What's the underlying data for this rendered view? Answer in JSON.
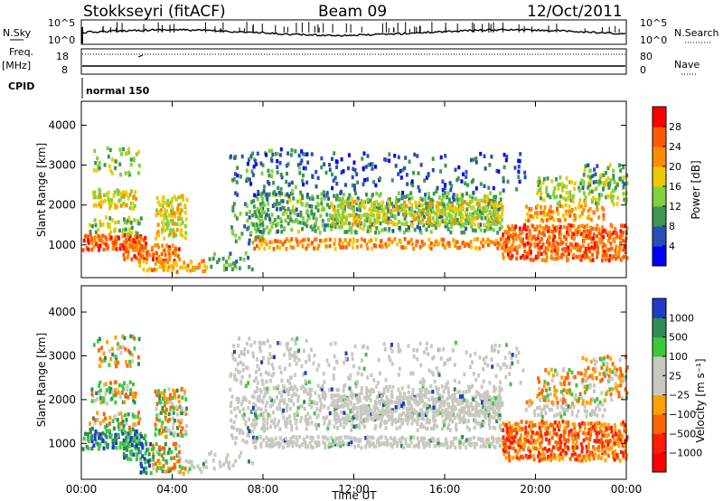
{
  "header": {
    "radar": "Stokkseyri (fitACF)",
    "beam": "Beam 09",
    "date": "12/Oct/2011"
  },
  "status": {
    "nsky_label": "N.Sky",
    "nsky_ticks": [
      "10^5",
      "10^0"
    ],
    "nsearch_label": "N.Search",
    "nsearch_ticks": [
      "10^5",
      "10^0"
    ],
    "freq_label": "Freq.",
    "freq_unit": "[MHz]",
    "freq_ticks": [
      "18",
      "8"
    ],
    "nave_label": "Nave",
    "nave_ticks": [
      "80",
      "0"
    ],
    "cpid_label": "CPID",
    "cpid_value": "normal 150"
  },
  "chart_data": [
    {
      "type": "heatmap",
      "name": "power",
      "ylabel": "Slant Range [km]",
      "xlabel": "Time UT",
      "xlim": [
        0,
        24
      ],
      "ylim": [
        180,
        4600
      ],
      "y_ticks": [
        "1000",
        "2000",
        "3000",
        "4000"
      ],
      "x_ticks": [
        "00:00",
        "04:00",
        "08:00",
        "12:00",
        "16:00",
        "20:00",
        "00:00"
      ],
      "colorbar_label": "Power [dB]",
      "colorbar_ticks": [
        "4",
        "8",
        "12",
        "16",
        "20",
        "24",
        "28"
      ],
      "colorbar_colors": [
        "#0000ff",
        "#2850b4",
        "#3c9650",
        "#7fd23c",
        "#f0c800",
        "#ff8c00",
        "#ff5a00",
        "#ff0000"
      ]
    },
    {
      "type": "heatmap",
      "name": "velocity",
      "ylabel": "Slant Range [km]",
      "xlabel": "Time UT",
      "xlim": [
        0,
        24
      ],
      "ylim": [
        180,
        4600
      ],
      "y_ticks": [
        "1000",
        "2000",
        "3000",
        "4000"
      ],
      "x_ticks": [
        "00:00",
        "04:00",
        "08:00",
        "12:00",
        "16:00",
        "20:00",
        "00:00"
      ],
      "colorbar_label": "Velocity [m s⁻¹]",
      "colorbar_ticks": [
        "1000",
        "500",
        "100",
        "25",
        "−25",
        "−100",
        "−500",
        "−1000"
      ],
      "colorbar_colors": [
        "#1e3cc8",
        "#2f8c55",
        "#3cc83c",
        "#c8c8c0",
        "#c8c8c0",
        "#ffa000",
        "#ff6400",
        "#ff1e00",
        "#ff0000"
      ]
    }
  ],
  "features": [
    {
      "t0": 0.0,
      "t1": 2.8,
      "r0": 860,
      "r1": 1260,
      "c": 0.85,
      "d": 0.95
    },
    {
      "t0": 0.3,
      "t1": 2.6,
      "r0": 1260,
      "r1": 1700,
      "c": 0.45,
      "d": 0.55
    },
    {
      "t0": 0.4,
      "t1": 2.4,
      "r0": 1900,
      "r1": 2400,
      "c": 0.55,
      "d": 0.75
    },
    {
      "t0": 0.5,
      "t1": 2.5,
      "r0": 2700,
      "r1": 3450,
      "c": 0.4,
      "d": 0.35
    },
    {
      "t0": 1.8,
      "t1": 4.3,
      "r0": 600,
      "r1": 1000,
      "c": 0.78,
      "d": 0.85
    },
    {
      "t0": 2.5,
      "t1": 5.5,
      "r0": 300,
      "r1": 600,
      "c": 0.65,
      "d": 0.7
    },
    {
      "t0": 3.2,
      "t1": 4.6,
      "r0": 1150,
      "r1": 2250,
      "c": 0.55,
      "d": 0.65
    },
    {
      "t0": 5.5,
      "t1": 7.5,
      "r0": 350,
      "r1": 800,
      "c": 0.3,
      "d": 0.35
    },
    {
      "t0": 6.5,
      "t1": 8.0,
      "r0": 1000,
      "r1": 2100,
      "c": 0.3,
      "d": 0.35
    },
    {
      "t0": 7.5,
      "t1": 19.0,
      "r0": 900,
      "r1": 1150,
      "c": 0.72,
      "d": 0.92
    },
    {
      "t0": 7.5,
      "t1": 18.5,
      "r0": 1300,
      "r1": 2300,
      "c": 0.35,
      "d": 0.6
    },
    {
      "t0": 11.0,
      "t1": 18.5,
      "r0": 1500,
      "r1": 2100,
      "c": 0.52,
      "d": 0.7
    },
    {
      "t0": 6.5,
      "t1": 10.0,
      "r0": 2200,
      "r1": 3400,
      "c": 0.2,
      "d": 0.3
    },
    {
      "t0": 10.0,
      "t1": 19.5,
      "r0": 2300,
      "r1": 3300,
      "c": 0.15,
      "d": 0.18
    },
    {
      "t0": 18.5,
      "t1": 24.0,
      "r0": 600,
      "r1": 1500,
      "c": 0.82,
      "d": 0.85
    },
    {
      "t0": 19.5,
      "t1": 23.0,
      "r0": 1600,
      "r1": 2000,
      "c": 0.7,
      "d": 0.7
    },
    {
      "t0": 20.0,
      "t1": 24.0,
      "r0": 2000,
      "r1": 2700,
      "c": 0.45,
      "d": 0.5
    },
    {
      "t0": 22.0,
      "t1": 24.0,
      "r0": 2400,
      "r1": 3000,
      "c": 0.35,
      "d": 0.3
    }
  ]
}
